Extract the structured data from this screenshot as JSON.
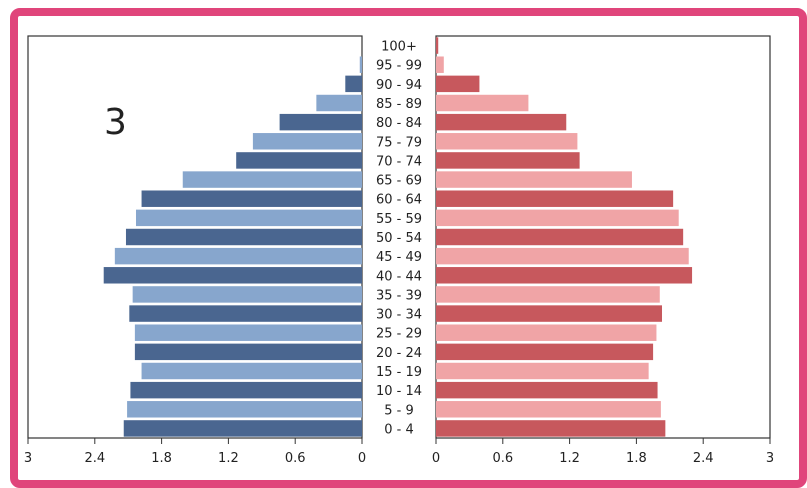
{
  "panel_number": "3",
  "frame_color": "#e0457b",
  "chart_data": {
    "type": "bar",
    "categories": [
      "100+",
      "95 - 99",
      "90 - 94",
      "85 - 89",
      "80 - 84",
      "75 - 79",
      "70 - 74",
      "65 - 69",
      "60 - 64",
      "55 - 59",
      "50 - 54",
      "45 - 49",
      "40 - 44",
      "35 - 39",
      "30 - 34",
      "25 - 29",
      "20 - 24",
      "15 - 19",
      "10 - 14",
      "5 - 9",
      "0 - 4"
    ],
    "series": [
      {
        "side": "left",
        "colors": [
          "#4a6690",
          "#87a6cd"
        ],
        "values": [
          0.0,
          0.02,
          0.15,
          0.41,
          0.74,
          0.98,
          1.13,
          1.61,
          1.98,
          2.03,
          2.12,
          2.22,
          2.32,
          2.06,
          2.09,
          2.04,
          2.04,
          1.98,
          2.08,
          2.11,
          2.14
        ]
      },
      {
        "side": "right",
        "colors": [
          "#c7585d",
          "#f0a4a6"
        ],
        "values": [
          0.02,
          0.07,
          0.39,
          0.83,
          1.17,
          1.27,
          1.29,
          1.76,
          2.13,
          2.18,
          2.22,
          2.27,
          2.3,
          2.01,
          2.03,
          1.98,
          1.95,
          1.91,
          1.99,
          2.02,
          2.06
        ]
      }
    ],
    "xlim": [
      0,
      3
    ],
    "left_ticks": [
      "3",
      "2.4",
      "1.8",
      "1.2",
      "0.6",
      "0"
    ],
    "right_ticks": [
      "0",
      "0.6",
      "1.2",
      "1.8",
      "2.4",
      "3"
    ],
    "grid": false
  }
}
